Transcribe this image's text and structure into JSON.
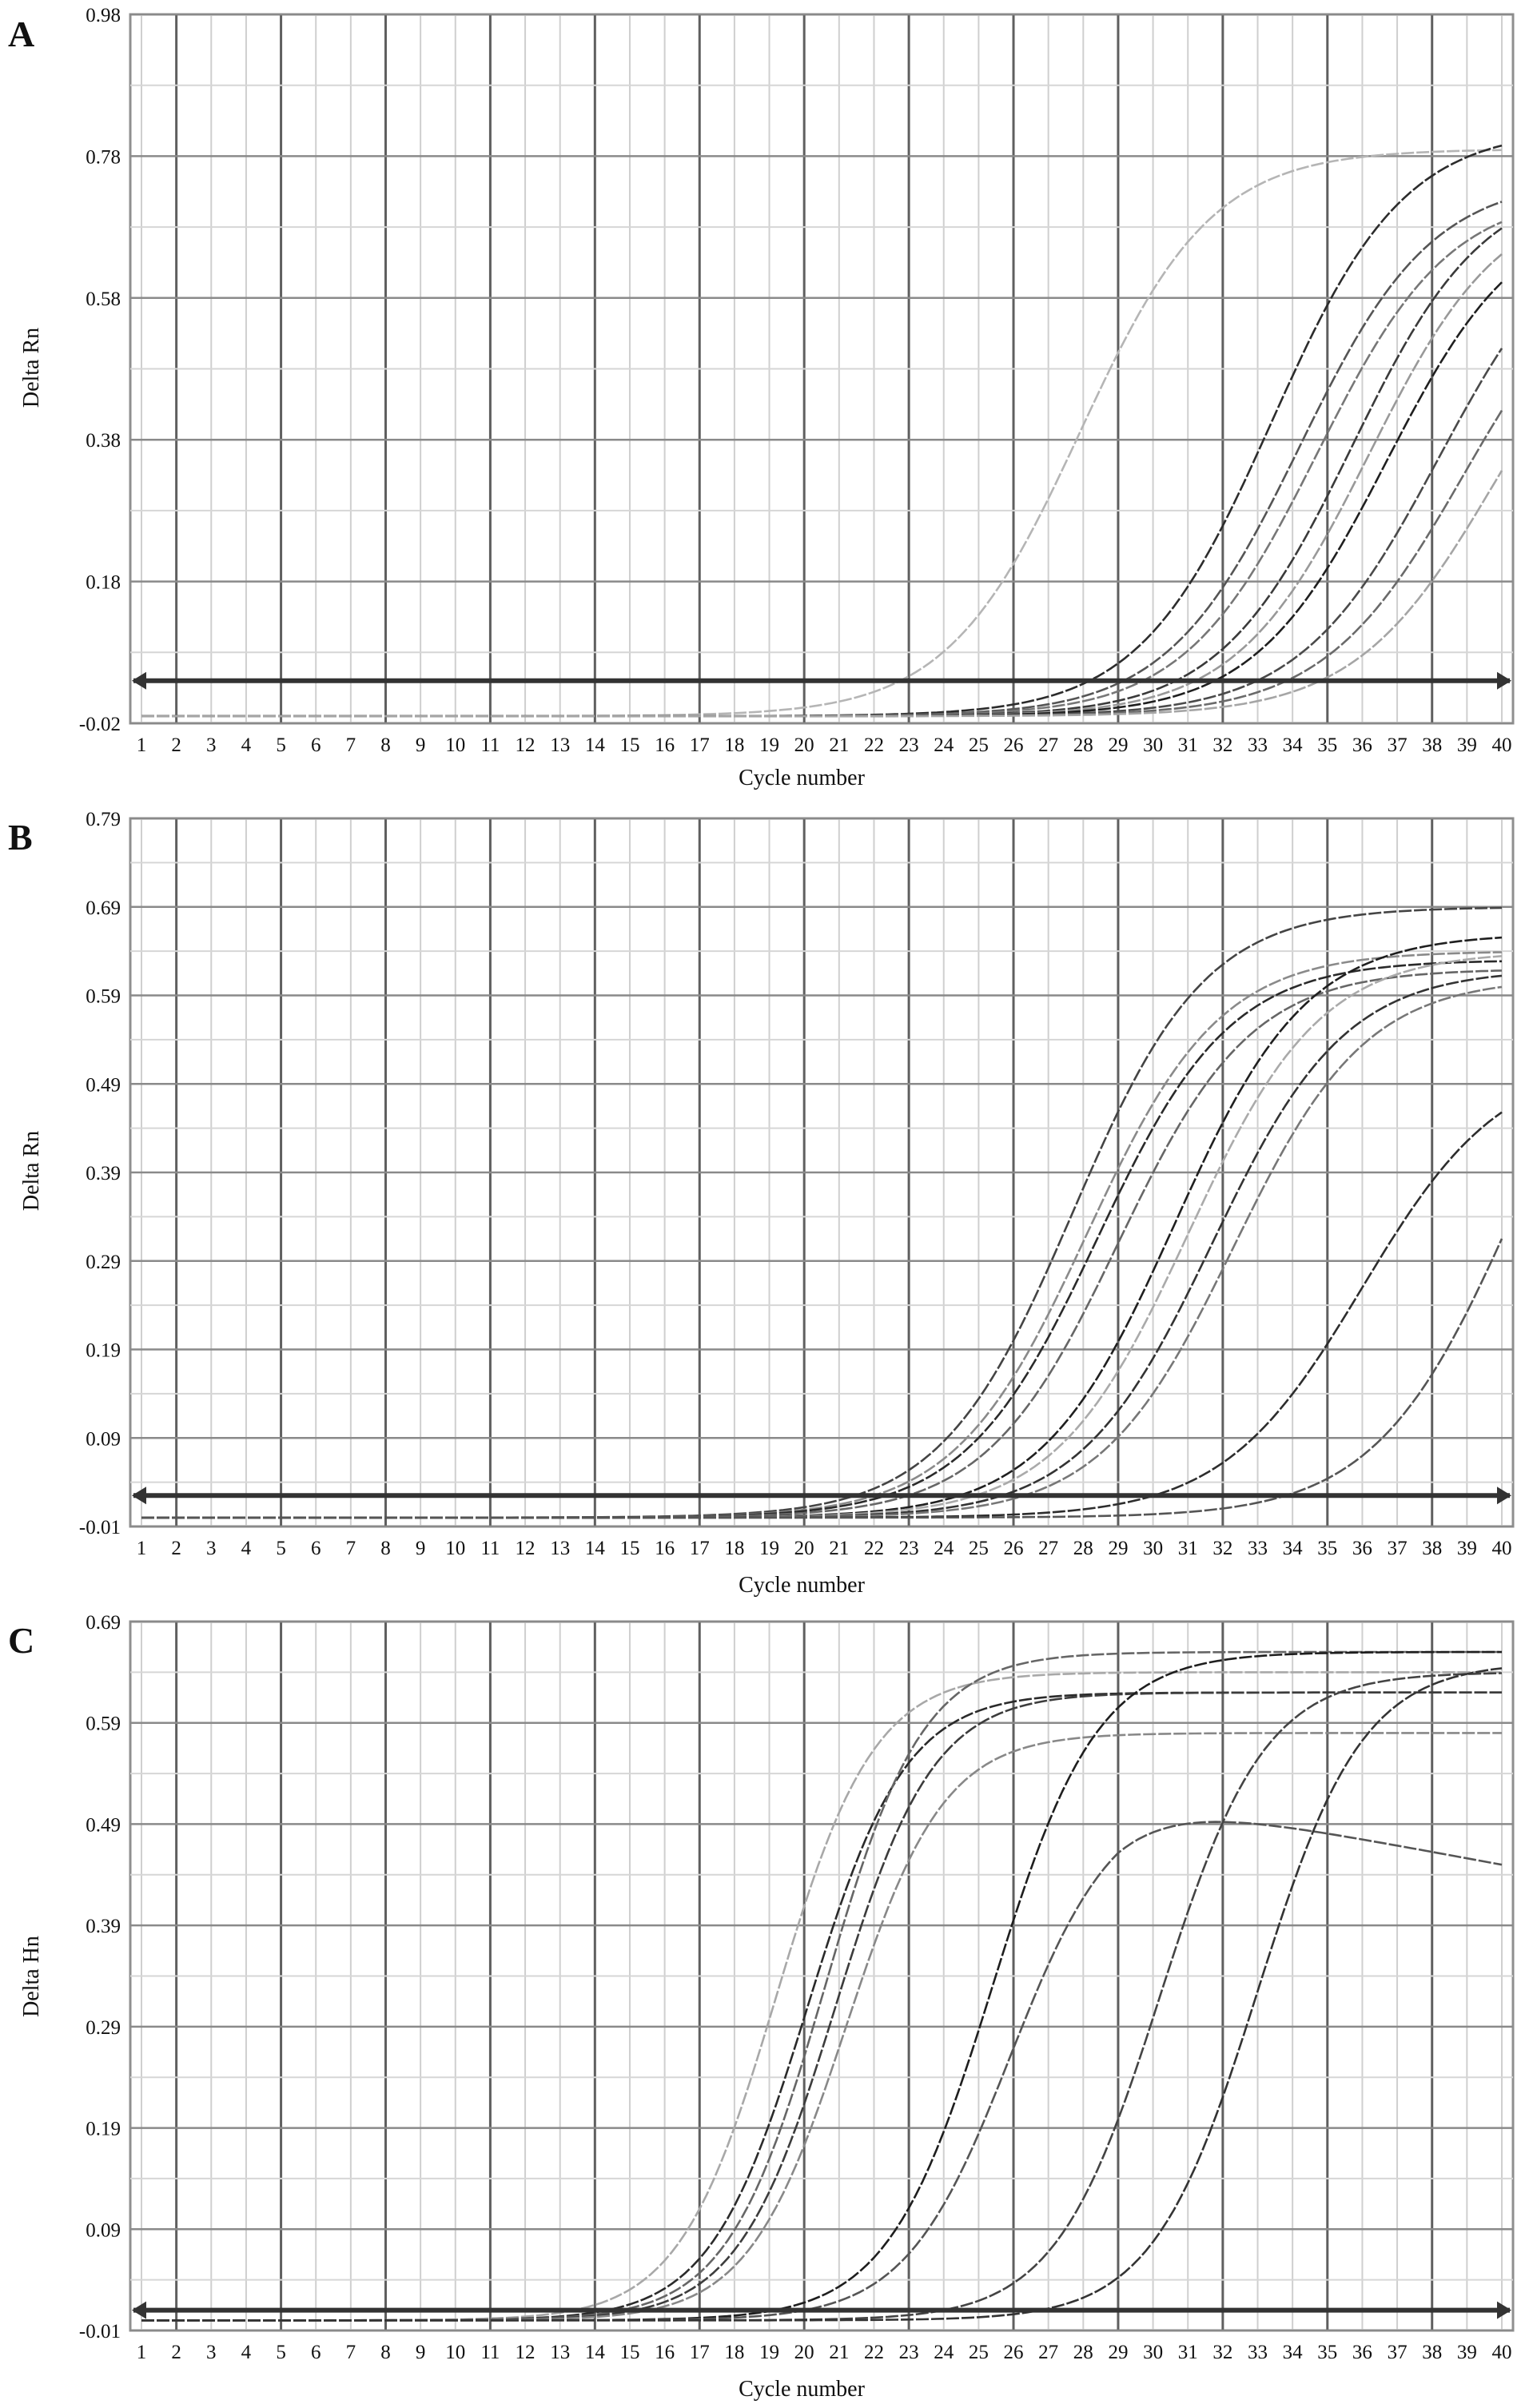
{
  "chart_data": [
    {
      "type": "line",
      "panel": "A",
      "xlabel": "Cycle number",
      "ylabel": "Delta Rn",
      "x": [
        1,
        2,
        3,
        4,
        5,
        6,
        7,
        8,
        9,
        10,
        11,
        12,
        13,
        14,
        15,
        16,
        17,
        18,
        19,
        20,
        21,
        22,
        23,
        24,
        25,
        26,
        27,
        28,
        29,
        30,
        31,
        32,
        33,
        34,
        35,
        36,
        37,
        38,
        39,
        40
      ],
      "xlim": [
        1,
        40
      ],
      "ylim": [
        -0.02,
        0.98
      ],
      "yticks": [
        -0.02,
        0.18,
        0.38,
        0.58,
        0.78,
        0.98
      ],
      "threshold": 0.04,
      "baseline": -0.01,
      "grid": true,
      "series": [
        {
          "ct": 24.5,
          "plateau": 0.8,
          "slope": 1.9,
          "color": "#b5b5b5"
        },
        {
          "ct": 30.0,
          "plateau": 0.83,
          "slope": 1.9,
          "color": "#2c2c2c"
        },
        {
          "ct": 30.8,
          "plateau": 0.76,
          "slope": 1.9,
          "color": "#555555"
        },
        {
          "ct": 31.3,
          "plateau": 0.74,
          "slope": 1.9,
          "color": "#777777"
        },
        {
          "ct": 32.3,
          "plateau": 0.76,
          "slope": 1.9,
          "color": "#3a3a3a"
        },
        {
          "ct": 32.8,
          "plateau": 0.74,
          "slope": 1.9,
          "color": "#999999"
        },
        {
          "ct": 33.3,
          "plateau": 0.72,
          "slope": 1.9,
          "color": "#1f1f1f"
        },
        {
          "ct": 34.8,
          "plateau": 0.73,
          "slope": 2.0,
          "color": "#4a4a4a"
        },
        {
          "ct": 35.5,
          "plateau": 0.68,
          "slope": 2.0,
          "color": "#6a6a6a"
        },
        {
          "ct": 36.4,
          "plateau": 0.66,
          "slope": 2.0,
          "color": "#a5a5a5"
        }
      ]
    },
    {
      "type": "line",
      "panel": "B",
      "xlabel": "Cycle number",
      "ylabel": "Delta Rn",
      "x": [
        1,
        2,
        3,
        4,
        5,
        6,
        7,
        8,
        9,
        10,
        11,
        12,
        13,
        14,
        15,
        16,
        17,
        18,
        19,
        20,
        21,
        22,
        23,
        24,
        25,
        26,
        27,
        28,
        29,
        30,
        31,
        32,
        33,
        34,
        35,
        36,
        37,
        38,
        39,
        40
      ],
      "xlim": [
        1,
        40
      ],
      "ylim": [
        -0.01,
        0.79
      ],
      "yticks": [
        -0.01,
        0.09,
        0.19,
        0.29,
        0.39,
        0.49,
        0.59,
        0.69,
        0.79
      ],
      "threshold": 0.025,
      "baseline": 0.0,
      "grid": true,
      "series": [
        {
          "ct": 24.3,
          "plateau": 0.69,
          "slope": 1.9,
          "color": "#444444"
        },
        {
          "ct": 24.7,
          "plateau": 0.64,
          "slope": 1.9,
          "color": "#8a8a8a"
        },
        {
          "ct": 25.0,
          "plateau": 0.63,
          "slope": 1.9,
          "color": "#2a2a2a"
        },
        {
          "ct": 25.6,
          "plateau": 0.62,
          "slope": 1.9,
          "color": "#666666"
        },
        {
          "ct": 27.2,
          "plateau": 0.66,
          "slope": 1.9,
          "color": "#1f1f1f"
        },
        {
          "ct": 27.6,
          "plateau": 0.64,
          "slope": 1.9,
          "color": "#aaaaaa"
        },
        {
          "ct": 28.3,
          "plateau": 0.62,
          "slope": 1.9,
          "color": "#333333"
        },
        {
          "ct": 28.9,
          "plateau": 0.61,
          "slope": 1.9,
          "color": "#777777"
        },
        {
          "ct": 32.6,
          "plateau": 0.52,
          "slope": 2.0,
          "color": "#2d2d2d"
        },
        {
          "ct": 37.0,
          "plateau": 0.7,
          "slope": 2.0,
          "color": "#555555"
        }
      ]
    },
    {
      "type": "line",
      "panel": "C",
      "xlabel": "Cycle number",
      "ylabel": "Delta Hn",
      "x": [
        1,
        2,
        3,
        4,
        5,
        6,
        7,
        8,
        9,
        10,
        11,
        12,
        13,
        14,
        15,
        16,
        17,
        18,
        19,
        20,
        21,
        22,
        23,
        24,
        25,
        26,
        27,
        28,
        29,
        30,
        31,
        32,
        33,
        34,
        35,
        36,
        37,
        38,
        39,
        40
      ],
      "xlim": [
        1,
        40
      ],
      "ylim": [
        -0.01,
        0.69
      ],
      "yticks": [
        -0.01,
        0.09,
        0.19,
        0.29,
        0.39,
        0.49,
        0.59,
        0.69
      ],
      "threshold": 0.01,
      "baseline": 0.0,
      "grid": true,
      "series": [
        {
          "ct": 15.8,
          "plateau": 0.64,
          "slope": 1.4,
          "color": "#a8a8a8"
        },
        {
          "ct": 16.7,
          "plateau": 0.62,
          "slope": 1.4,
          "color": "#2a2a2a"
        },
        {
          "ct": 17.2,
          "plateau": 0.66,
          "slope": 1.4,
          "color": "#666666"
        },
        {
          "ct": 17.5,
          "plateau": 0.62,
          "slope": 1.4,
          "color": "#3c3c3c"
        },
        {
          "ct": 17.8,
          "plateau": 0.58,
          "slope": 1.4,
          "color": "#888888"
        },
        {
          "ct": 22.0,
          "plateau": 0.66,
          "slope": 1.5,
          "color": "#1e1e1e"
        },
        {
          "ct": 22.5,
          "plateau": 0.52,
          "slope": 1.5,
          "color": "#555555",
          "decline": 0.07
        },
        {
          "ct": 26.8,
          "plateau": 0.64,
          "slope": 1.5,
          "color": "#444444"
        },
        {
          "ct": 29.6,
          "plateau": 0.65,
          "slope": 1.5,
          "color": "#333333"
        }
      ]
    }
  ]
}
